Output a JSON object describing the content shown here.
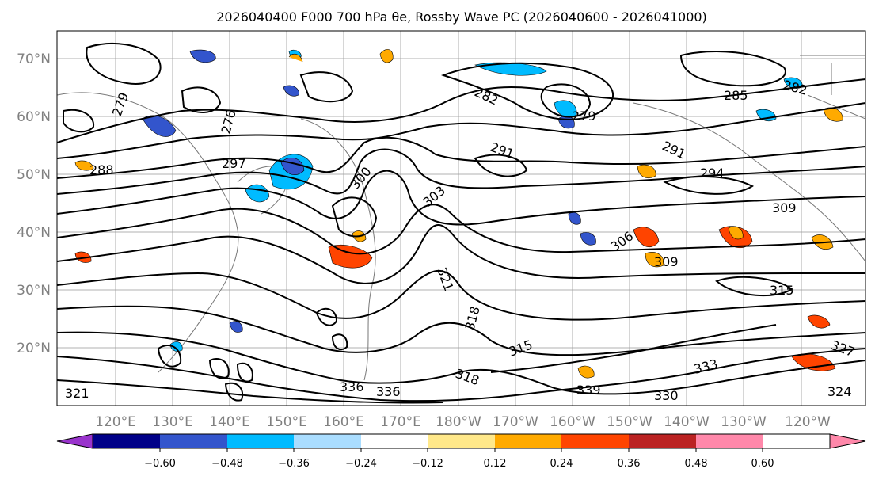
{
  "title": "2026040400 F000 700 hPa θe, Rossby Wave PC (2026040600 - 2026041000)",
  "latitude_labels": [
    "70°N",
    "60°N",
    "50°N",
    "40°N",
    "30°N",
    "20°N"
  ],
  "longitude_labels": [
    "120°E",
    "130°E",
    "140°E",
    "150°E",
    "160°E",
    "170°E",
    "180°W",
    "170°W",
    "160°W",
    "150°W",
    "140°W",
    "130°W",
    "120°W"
  ],
  "colorbar": {
    "ticks": [
      "−0.60",
      "−0.48",
      "−0.36",
      "−0.24",
      "−0.12",
      "0.12",
      "0.24",
      "0.36",
      "0.48",
      "0.60"
    ],
    "colors": [
      "#9933cc",
      "#000088",
      "#3355cc",
      "#00bbff",
      "#aaddff",
      "#ffffff",
      "#ffe88a",
      "#ffaa00",
      "#ff4400",
      "#bb2222",
      "#ff88aa"
    ]
  },
  "contour_labels": {
    "l282a": "282",
    "l285": "285",
    "l282b": "282",
    "l279a": "279",
    "l279b": "279",
    "l276": "276",
    "l288": "288",
    "l291a": "291",
    "l291b": "291",
    "l294": "294",
    "l297": "297",
    "l300": "300",
    "l303a": "303",
    "l309a": "309",
    "l309b": "309",
    "l306": "306",
    "l321": "321",
    "l318a": "318",
    "l315a": "315",
    "l315b": "315",
    "l318b": "318",
    "l327": "327",
    "l330": "330",
    "l336a": "336",
    "l336b": "336",
    "l339": "339",
    "l324": "324",
    "l321b": "321",
    "l333": "333"
  }
}
